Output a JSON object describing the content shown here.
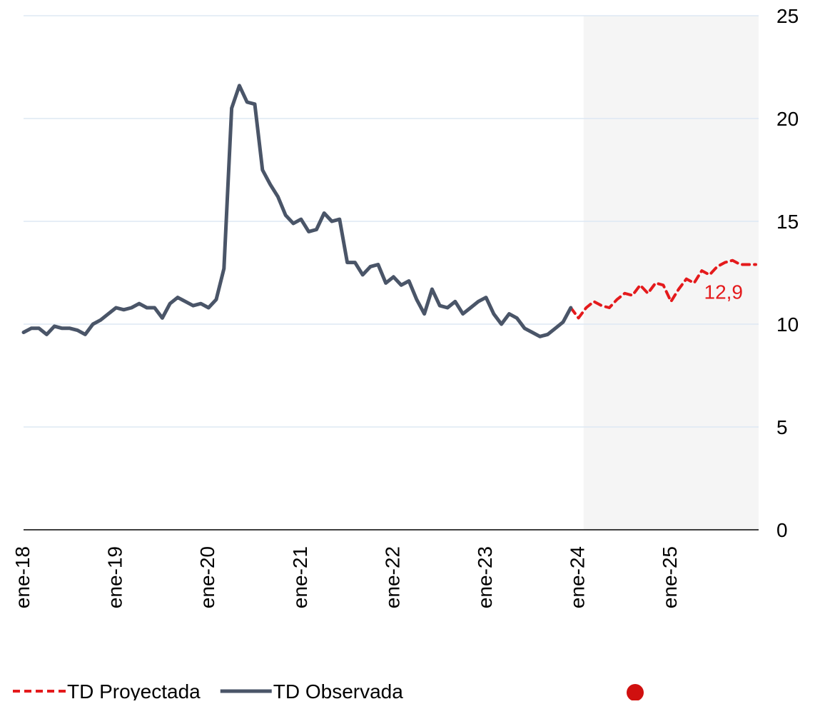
{
  "chart_data": {
    "type": "line",
    "categories": [
      "ene-18",
      null,
      null,
      null,
      null,
      null,
      null,
      null,
      null,
      null,
      null,
      null,
      "ene-19",
      null,
      null,
      null,
      null,
      null,
      null,
      null,
      null,
      null,
      null,
      null,
      "ene-20",
      null,
      null,
      null,
      null,
      null,
      null,
      null,
      null,
      null,
      null,
      null,
      "ene-21",
      null,
      null,
      null,
      null,
      null,
      null,
      null,
      null,
      null,
      null,
      null,
      "ene-22",
      null,
      null,
      null,
      null,
      null,
      null,
      null,
      null,
      null,
      null,
      null,
      "ene-23",
      null,
      null,
      null,
      null,
      null,
      null,
      null,
      null,
      null,
      null,
      null,
      "ene-24",
      null,
      null,
      null,
      null,
      null,
      null,
      null,
      null,
      null,
      null,
      null,
      "ene-25",
      null,
      null,
      null,
      null,
      null,
      null,
      null,
      null,
      null,
      null,
      null
    ],
    "series": [
      {
        "name": "TD Proyectada",
        "color": "#e41a1c",
        "dashed": true,
        "values": [
          null,
          null,
          null,
          null,
          null,
          null,
          null,
          null,
          null,
          null,
          null,
          null,
          null,
          null,
          null,
          null,
          null,
          null,
          null,
          null,
          null,
          null,
          null,
          null,
          null,
          null,
          null,
          null,
          null,
          null,
          null,
          null,
          null,
          null,
          null,
          null,
          null,
          null,
          null,
          null,
          null,
          null,
          null,
          null,
          null,
          null,
          null,
          null,
          null,
          null,
          null,
          null,
          null,
          null,
          null,
          null,
          null,
          null,
          null,
          null,
          null,
          null,
          null,
          null,
          null,
          null,
          null,
          null,
          null,
          null,
          null,
          10.8,
          10.3,
          10.8,
          11.1,
          10.9,
          10.8,
          11.2,
          11.5,
          11.4,
          11.9,
          11.5,
          12.0,
          11.9,
          11.1,
          11.7,
          12.2,
          12.0,
          12.6,
          12.4,
          12.8,
          13.0,
          13.1,
          12.9,
          12.9,
          12.9
        ],
        "value_labels": [
          null,
          null,
          null,
          null,
          null,
          null,
          null,
          null,
          null,
          null,
          null,
          null,
          null,
          null,
          null,
          null,
          null,
          null,
          null,
          null,
          null,
          null,
          null,
          null,
          null,
          null,
          null,
          null,
          null,
          null,
          null,
          null,
          null,
          null,
          null,
          null,
          null,
          null,
          null,
          null,
          null,
          null,
          null,
          null,
          null,
          null,
          null,
          null,
          null,
          null,
          null,
          null,
          null,
          null,
          null,
          null,
          null,
          null,
          null,
          null,
          null,
          null,
          null,
          null,
          null,
          null,
          null,
          null,
          null,
          null,
          null,
          null,
          null,
          null,
          null,
          null,
          null,
          null,
          null,
          null,
          null,
          null,
          null,
          null,
          null,
          null,
          null,
          null,
          null,
          null,
          null,
          null,
          null,
          null,
          null,
          "12,9"
        ]
      },
      {
        "name": "TD Observada",
        "color": "#4a5568",
        "dashed": false,
        "values": [
          9.6,
          9.8,
          9.8,
          9.5,
          9.9,
          9.8,
          9.8,
          9.7,
          9.5,
          10.0,
          10.2,
          10.5,
          10.8,
          10.7,
          10.8,
          11.0,
          10.8,
          10.8,
          10.3,
          11.0,
          11.3,
          11.1,
          10.9,
          11.0,
          10.8,
          11.2,
          12.7,
          20.5,
          21.6,
          20.8,
          20.7,
          17.5,
          16.8,
          16.2,
          15.3,
          14.9,
          15.1,
          14.5,
          14.6,
          15.4,
          15.0,
          15.1,
          13.0,
          13.0,
          12.4,
          12.8,
          12.9,
          12.0,
          12.3,
          11.9,
          12.1,
          11.2,
          10.5,
          11.7,
          10.9,
          10.8,
          11.1,
          10.5,
          10.8,
          11.1,
          11.3,
          10.5,
          10.0,
          10.5,
          10.3,
          9.8,
          9.6,
          9.4,
          9.5,
          9.8,
          10.1,
          10.8,
          null,
          null,
          null,
          null,
          null,
          null,
          null,
          null,
          null,
          null,
          null,
          null,
          null,
          null,
          null,
          null,
          null,
          null,
          null,
          null,
          null,
          null,
          null,
          null
        ]
      }
    ],
    "ylim": [
      0,
      25
    ],
    "yticks": [
      0,
      5,
      10,
      15,
      20,
      25
    ],
    "grid": true,
    "legend": "bottom-left"
  }
}
